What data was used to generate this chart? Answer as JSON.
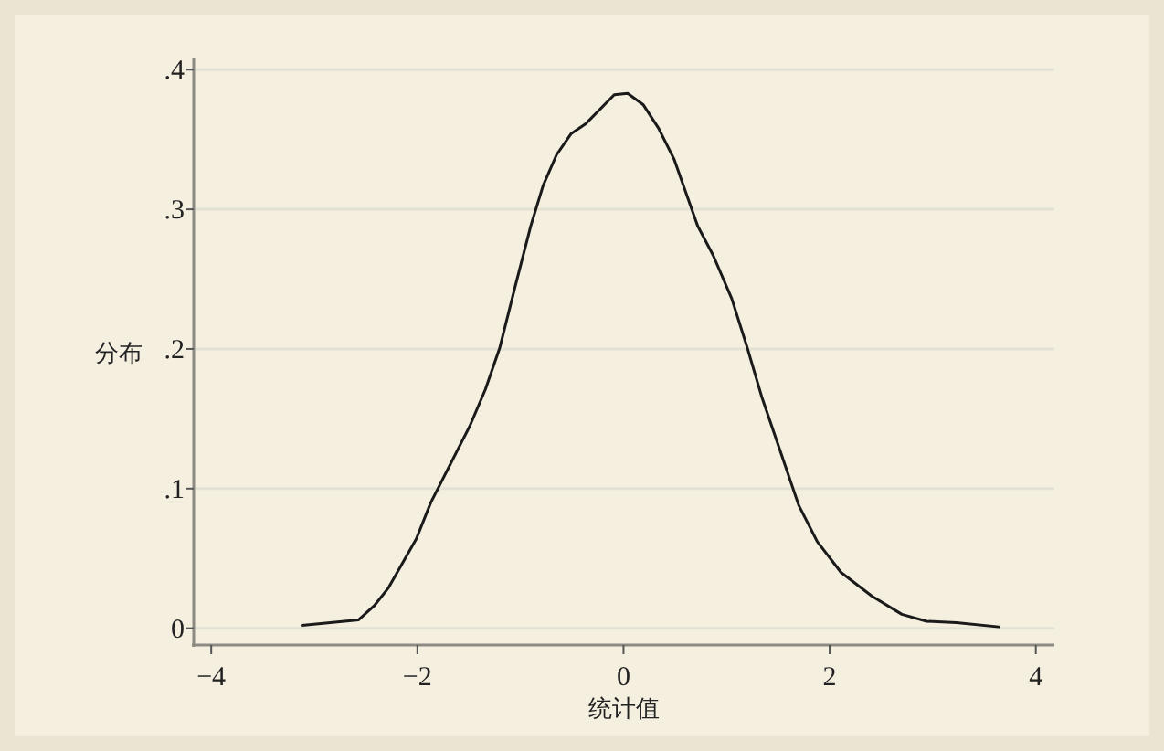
{
  "chart_data": {
    "type": "line",
    "xlabel": "统计值",
    "ylabel": "分布",
    "xlim": [
      -4.17,
      4.18
    ],
    "ylim": [
      -0.012,
      0.408
    ],
    "xticks": [
      {
        "value": -4,
        "label": "−4"
      },
      {
        "value": -2,
        "label": "−2"
      },
      0,
      2,
      4
    ],
    "yticks": [
      0,
      {
        "value": 0.1,
        "label": ".1"
      },
      {
        "value": 0.2,
        "label": ".2"
      },
      {
        "value": 0.3,
        "label": ".3"
      },
      {
        "value": 0.4,
        "label": ".4"
      }
    ],
    "grid": "y",
    "marker": "none",
    "line_style": "solid",
    "series": [
      {
        "color": "#1a1a1a",
        "x": [
          -3.12,
          -2.57,
          -2.42,
          -2.28,
          -2.01,
          -1.87,
          -1.49,
          -1.34,
          -1.2,
          -1.05,
          -0.9,
          -0.78,
          -0.65,
          -0.51,
          -0.37,
          -0.09,
          0.04,
          0.19,
          0.34,
          0.49,
          0.72,
          0.87,
          1.05,
          1.2,
          1.34,
          1.52,
          1.7,
          1.88,
          2.11,
          2.41,
          2.7,
          2.94,
          3.23,
          3.64
        ],
        "values": [
          0.002,
          0.006,
          0.016,
          0.029,
          0.064,
          0.09,
          0.145,
          0.171,
          0.201,
          0.245,
          0.288,
          0.317,
          0.339,
          0.354,
          0.361,
          0.382,
          0.383,
          0.375,
          0.358,
          0.336,
          0.288,
          0.267,
          0.236,
          0.201,
          0.166,
          0.127,
          0.088,
          0.062,
          0.04,
          0.023,
          0.01,
          0.005,
          0.004,
          0.001
        ]
      }
    ]
  }
}
